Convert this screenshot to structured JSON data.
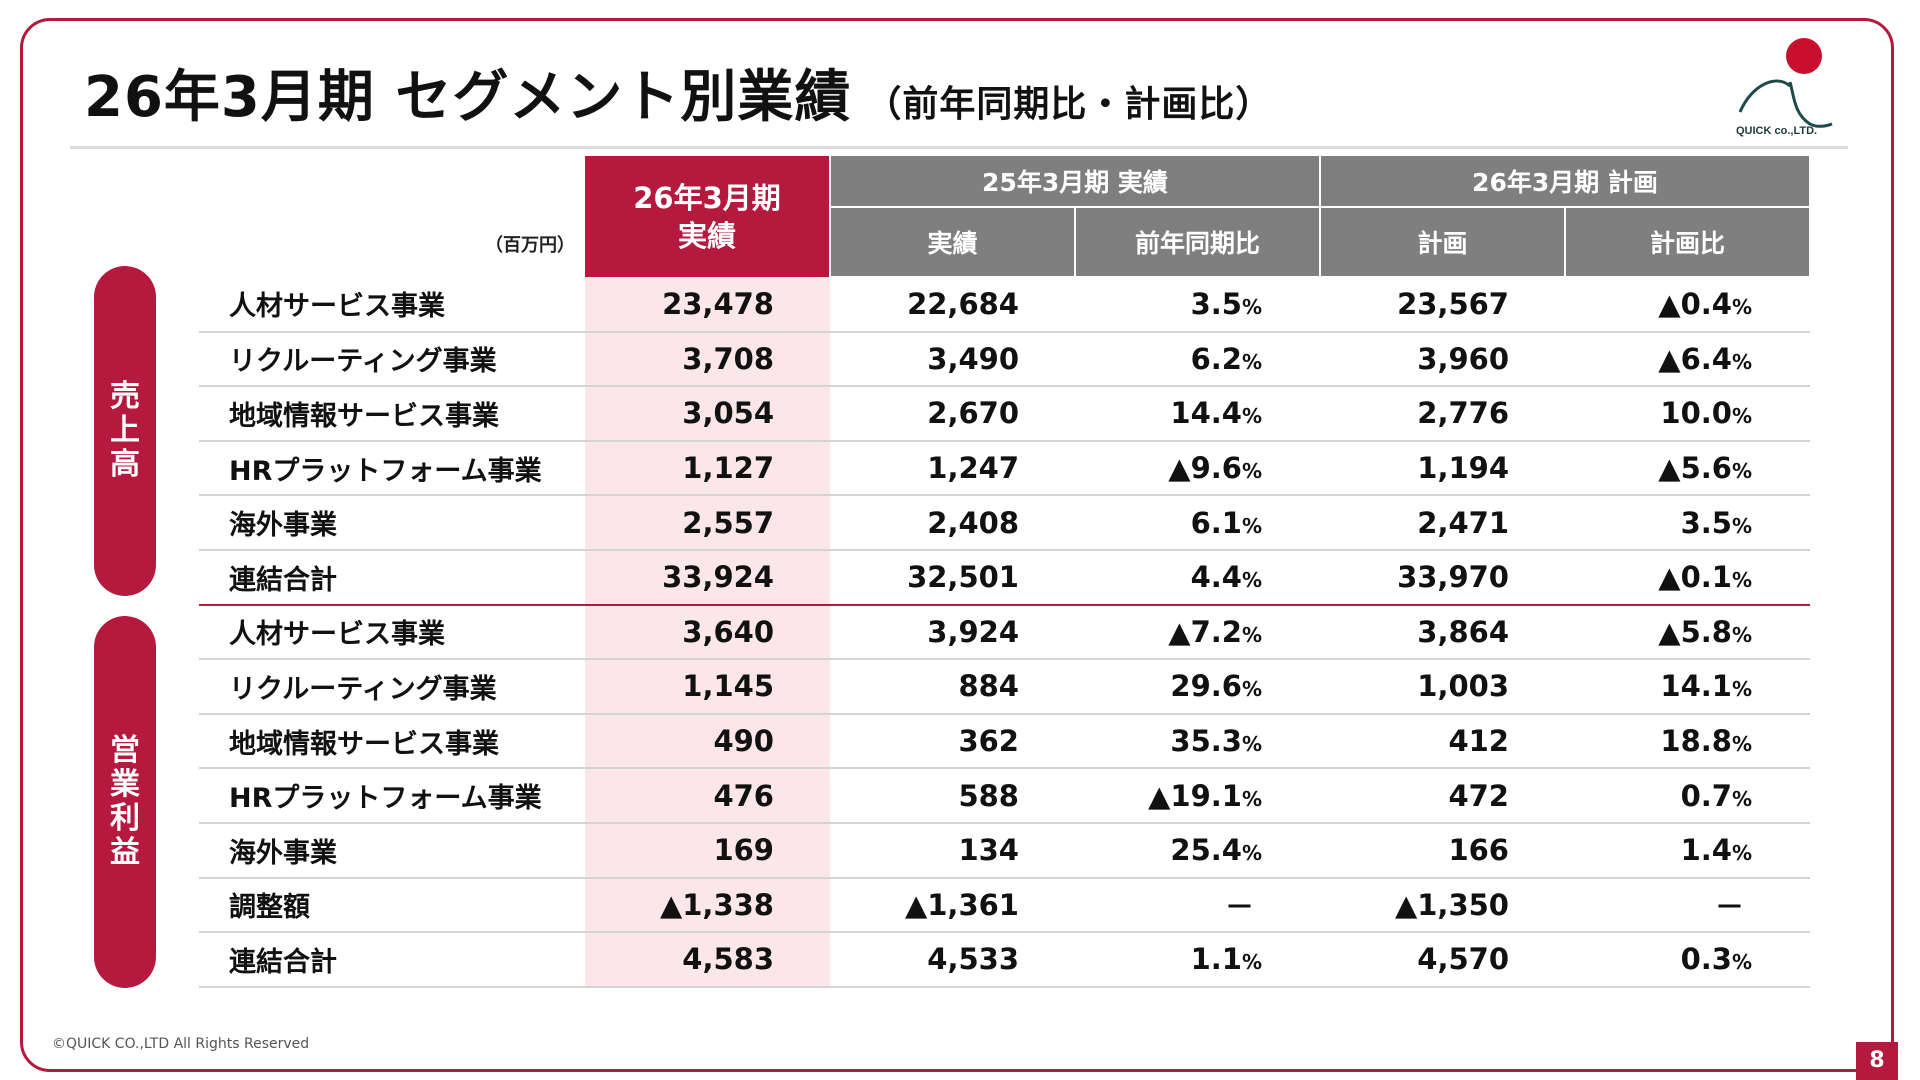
{
  "title": "26年3月期 セグメント別業績",
  "subtitle": "（前年同期比・計画比）",
  "logo_text": "QUICK co.,LTD.",
  "unit": "（百万円）",
  "header": {
    "current": "26年3月期\n実績",
    "prev_group": "25年3月期 実績",
    "plan_group": "26年3月期  計画",
    "prev_actual": "実績",
    "yoy": "前年同期比",
    "plan": "計画",
    "vs_plan": "計画比"
  },
  "sections": {
    "sales": "売上高",
    "operating_profit": "営業利益"
  },
  "rows": [
    {
      "label": "人材サービス事業",
      "current": "23,478",
      "prev": "22,684",
      "yoy": "3.5",
      "plan": "23,567",
      "vs_plan": "▲0.4"
    },
    {
      "label": "リクルーティング事業",
      "current": "3,708",
      "prev": "3,490",
      "yoy": "6.2",
      "plan": "3,960",
      "vs_plan": "▲6.4"
    },
    {
      "label": "地域情報サービス事業",
      "current": "3,054",
      "prev": "2,670",
      "yoy": "14.4",
      "plan": "2,776",
      "vs_plan": "10.0"
    },
    {
      "label": "HRプラットフォーム事業",
      "current": "1,127",
      "prev": "1,247",
      "yoy": "▲9.6",
      "plan": "1,194",
      "vs_plan": "▲5.6"
    },
    {
      "label": "海外事業",
      "current": "2,557",
      "prev": "2,408",
      "yoy": "6.1",
      "plan": "2,471",
      "vs_plan": "3.5"
    },
    {
      "label": "連結合計",
      "current": "33,924",
      "prev": "32,501",
      "yoy": "4.4",
      "plan": "33,970",
      "vs_plan": "▲0.1"
    },
    {
      "label": "人材サービス事業",
      "current": "3,640",
      "prev": "3,924",
      "yoy": "▲7.2",
      "plan": "3,864",
      "vs_plan": "▲5.8"
    },
    {
      "label": "リクルーティング事業",
      "current": "1,145",
      "prev": "884",
      "yoy": "29.6",
      "plan": "1,003",
      "vs_plan": "14.1"
    },
    {
      "label": "地域情報サービス事業",
      "current": "490",
      "prev": "362",
      "yoy": "35.3",
      "plan": "412",
      "vs_plan": "18.8"
    },
    {
      "label": "HRプラットフォーム事業",
      "current": "476",
      "prev": "588",
      "yoy": "▲19.1",
      "plan": "472",
      "vs_plan": "0.7"
    },
    {
      "label": "海外事業",
      "current": "169",
      "prev": "134",
      "yoy": "25.4",
      "plan": "166",
      "vs_plan": "1.4"
    },
    {
      "label": "調整額",
      "current": "▲1,338",
      "prev": "▲1,361",
      "yoy": "－",
      "plan": "▲1,350",
      "vs_plan": "－"
    },
    {
      "label": "連結合計",
      "current": "4,583",
      "prev": "4,533",
      "yoy": "1.1",
      "plan": "4,570",
      "vs_plan": "0.3"
    }
  ],
  "percent_sign": "%",
  "copyright": "©QUICK CO.,LTD All Rights Reserved",
  "page_number": "8",
  "colors": {
    "accent": "#b5193e",
    "header_gray": "#7f7f7f",
    "current_bg": "#fbe6ea"
  }
}
